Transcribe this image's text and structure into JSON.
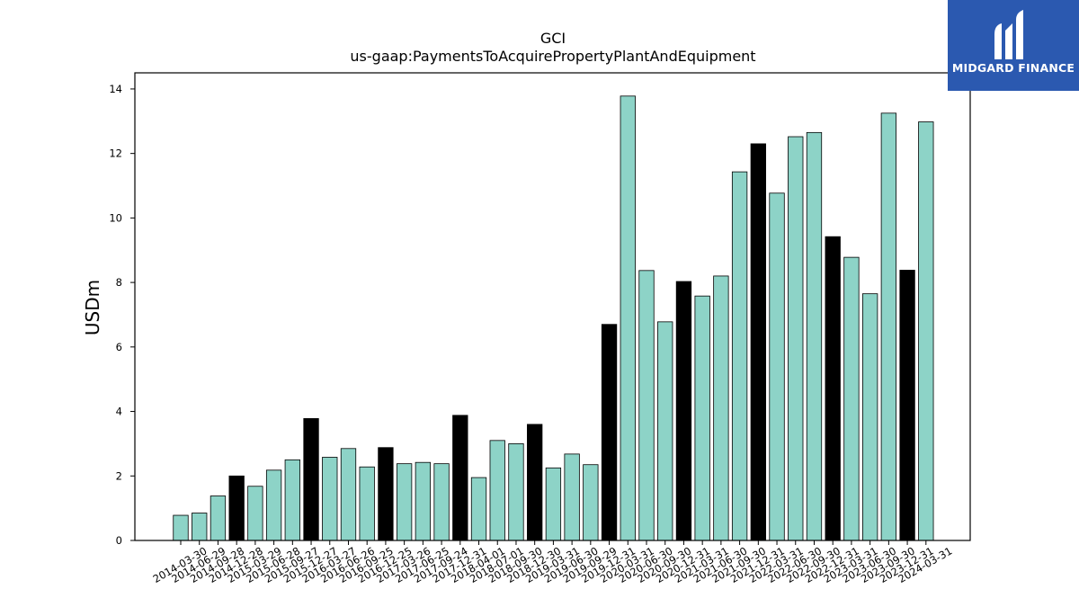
{
  "chart_data": {
    "type": "bar",
    "title": "GCI",
    "subtitle": "us-gaap:PaymentsToAcquirePropertyPlantAndEquipment",
    "xlabel": "",
    "ylabel": "USDm",
    "ylim": [
      0,
      14.5
    ],
    "yticks": [
      0,
      2,
      4,
      6,
      8,
      10,
      12,
      14
    ],
    "grid": false,
    "colors": {
      "quarter": "#8dd3c7",
      "annual": "#000000",
      "edge": "#000000"
    },
    "categories": [
      "2014-03-30",
      "2014-06-29",
      "2014-09-28",
      "2014-12-28",
      "2015-03-29",
      "2015-06-28",
      "2015-09-27",
      "2015-12-27",
      "2016-03-27",
      "2016-06-26",
      "2016-09-25",
      "2016-12-25",
      "2017-03-26",
      "2017-06-25",
      "2017-09-24",
      "2017-12-31",
      "2018-04-01",
      "2018-07-01",
      "2018-09-30",
      "2018-12-30",
      "2019-03-31",
      "2019-06-30",
      "2019-09-29",
      "2019-12-31",
      "2020-03-31",
      "2020-06-30",
      "2020-09-30",
      "2020-12-31",
      "2021-03-31",
      "2021-06-30",
      "2021-09-30",
      "2021-12-31",
      "2022-03-31",
      "2022-06-30",
      "2022-09-30",
      "2022-12-31",
      "2023-03-31",
      "2023-06-30",
      "2023-09-30",
      "2023-12-31",
      "2024-03-31"
    ],
    "values": [
      0.78,
      0.85,
      1.38,
      2.0,
      1.68,
      2.18,
      2.5,
      3.78,
      2.58,
      2.85,
      2.28,
      2.88,
      2.38,
      2.42,
      2.38,
      3.88,
      1.95,
      3.1,
      3.0,
      3.6,
      2.25,
      2.68,
      2.35,
      6.7,
      13.78,
      8.37,
      6.78,
      8.03,
      7.58,
      8.2,
      11.43,
      12.3,
      10.77,
      12.52,
      12.65,
      9.42,
      8.78,
      7.65,
      13.25,
      8.38,
      12.98
    ],
    "highlight": [
      false,
      false,
      false,
      true,
      false,
      false,
      false,
      true,
      false,
      false,
      false,
      true,
      false,
      false,
      false,
      true,
      false,
      false,
      false,
      true,
      false,
      false,
      false,
      true,
      false,
      false,
      false,
      true,
      false,
      false,
      false,
      true,
      false,
      false,
      false,
      true,
      false,
      false,
      false,
      true,
      false
    ]
  },
  "logo": {
    "text": "MIDGARD FINANCE",
    "icon": "midgard-logo-icon",
    "background": "#2b59b0"
  }
}
